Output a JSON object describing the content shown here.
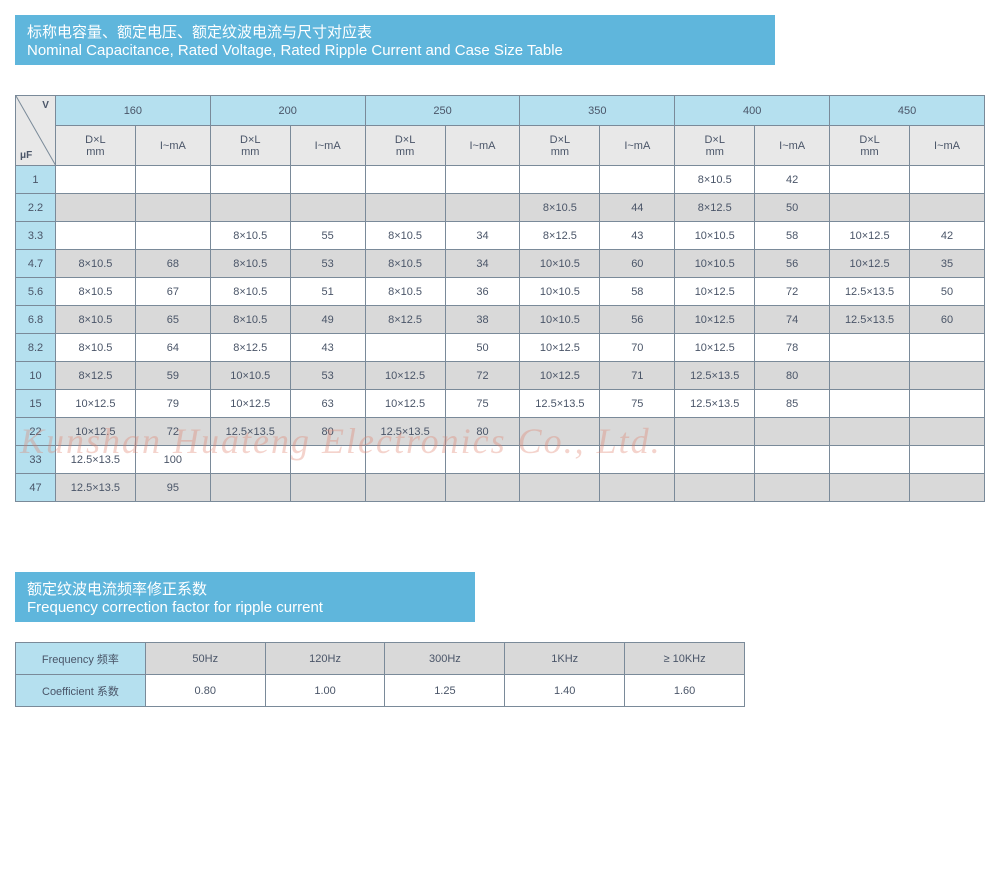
{
  "title1": {
    "cn": "标称电容量、额定电压、额定纹波电流与尺寸对应表",
    "en": "Nominal Capacitance, Rated Voltage, Rated Ripple Current and Case Size Table"
  },
  "title2": {
    "cn": "额定纹波电流频率修正系数",
    "en": "Frequency correction factor for ripple current"
  },
  "corner": {
    "v": "V",
    "uf": "μF"
  },
  "voltages": [
    "160",
    "200",
    "250",
    "350",
    "400",
    "450"
  ],
  "subheaders": {
    "dl": "D×L\nmm",
    "ima": "I~mA"
  },
  "uf_values": [
    "1",
    "2.2",
    "3.3",
    "4.7",
    "5.6",
    "6.8",
    "8.2",
    "10",
    "15",
    "22",
    "33",
    "47"
  ],
  "main_rows": [
    {
      "gray": false,
      "cells": [
        "",
        "",
        "",
        "",
        "",
        "",
        "",
        "",
        "8×10.5",
        "42",
        "",
        ""
      ]
    },
    {
      "gray": true,
      "cells": [
        "",
        "",
        "",
        "",
        "",
        "",
        "8×10.5",
        "44",
        "8×12.5",
        "50",
        "",
        ""
      ]
    },
    {
      "gray": false,
      "cells": [
        "",
        "",
        "8×10.5",
        "55",
        "8×10.5",
        "34",
        "8×12.5",
        "43",
        "10×10.5",
        "58",
        "10×12.5",
        "42"
      ]
    },
    {
      "gray": true,
      "cells": [
        "8×10.5",
        "68",
        "8×10.5",
        "53",
        "8×10.5",
        "34",
        "10×10.5",
        "60",
        "10×10.5",
        "56",
        "10×12.5",
        "35"
      ]
    },
    {
      "gray": false,
      "cells": [
        "8×10.5",
        "67",
        "8×10.5",
        "51",
        "8×10.5",
        "36",
        "10×10.5",
        "58",
        "10×12.5",
        "72",
        "12.5×13.5",
        "50"
      ]
    },
    {
      "gray": true,
      "cells": [
        "8×10.5",
        "65",
        "8×10.5",
        "49",
        "8×12.5",
        "38",
        "10×10.5",
        "56",
        "10×12.5",
        "74",
        "12.5×13.5",
        "60"
      ]
    },
    {
      "gray": false,
      "cells": [
        "8×10.5",
        "64",
        "8×12.5",
        "43",
        "",
        "50",
        "10×12.5",
        "70",
        "10×12.5",
        "78",
        "",
        ""
      ]
    },
    {
      "gray": true,
      "cells": [
        "8×12.5",
        "59",
        "10×10.5",
        "53",
        "10×12.5",
        "72",
        "10×12.5",
        "71",
        "12.5×13.5",
        "80",
        "",
        ""
      ]
    },
    {
      "gray": false,
      "cells": [
        "10×12.5",
        "79",
        "10×12.5",
        "63",
        "10×12.5",
        "75",
        "12.5×13.5",
        "75",
        "12.5×13.5",
        "85",
        "",
        ""
      ]
    },
    {
      "gray": true,
      "cells": [
        "10×12.5",
        "72",
        "12.5×13.5",
        "80",
        "12.5×13.5",
        "80",
        "",
        "",
        "",
        "",
        "",
        ""
      ]
    },
    {
      "gray": false,
      "cells": [
        "12.5×13.5",
        "100",
        "",
        "",
        "",
        "",
        "",
        "",
        "",
        "",
        "",
        ""
      ]
    },
    {
      "gray": true,
      "cells": [
        "12.5×13.5",
        "95",
        "",
        "",
        "",
        "",
        "",
        "",
        "",
        "",
        "",
        ""
      ]
    }
  ],
  "freq": {
    "row1_label": "Frequency 频率",
    "row2_label": "Coefficient 系数",
    "headers": [
      "50Hz",
      "120Hz",
      "300Hz",
      "1KHz",
      "≥ 10KHz"
    ],
    "values": [
      "0.80",
      "1.00",
      "1.25",
      "1.40",
      "1.60"
    ]
  },
  "watermark": "Kunshan Huateng Electronics Co., Ltd.",
  "colors": {
    "title_bg": "#5fb6dc",
    "header_blue": "#b5e0ef",
    "gray_bg": "#d9d9d9",
    "sub_gray": "#e8e8e8",
    "border": "#7a8a99",
    "text": "#4a5568"
  }
}
